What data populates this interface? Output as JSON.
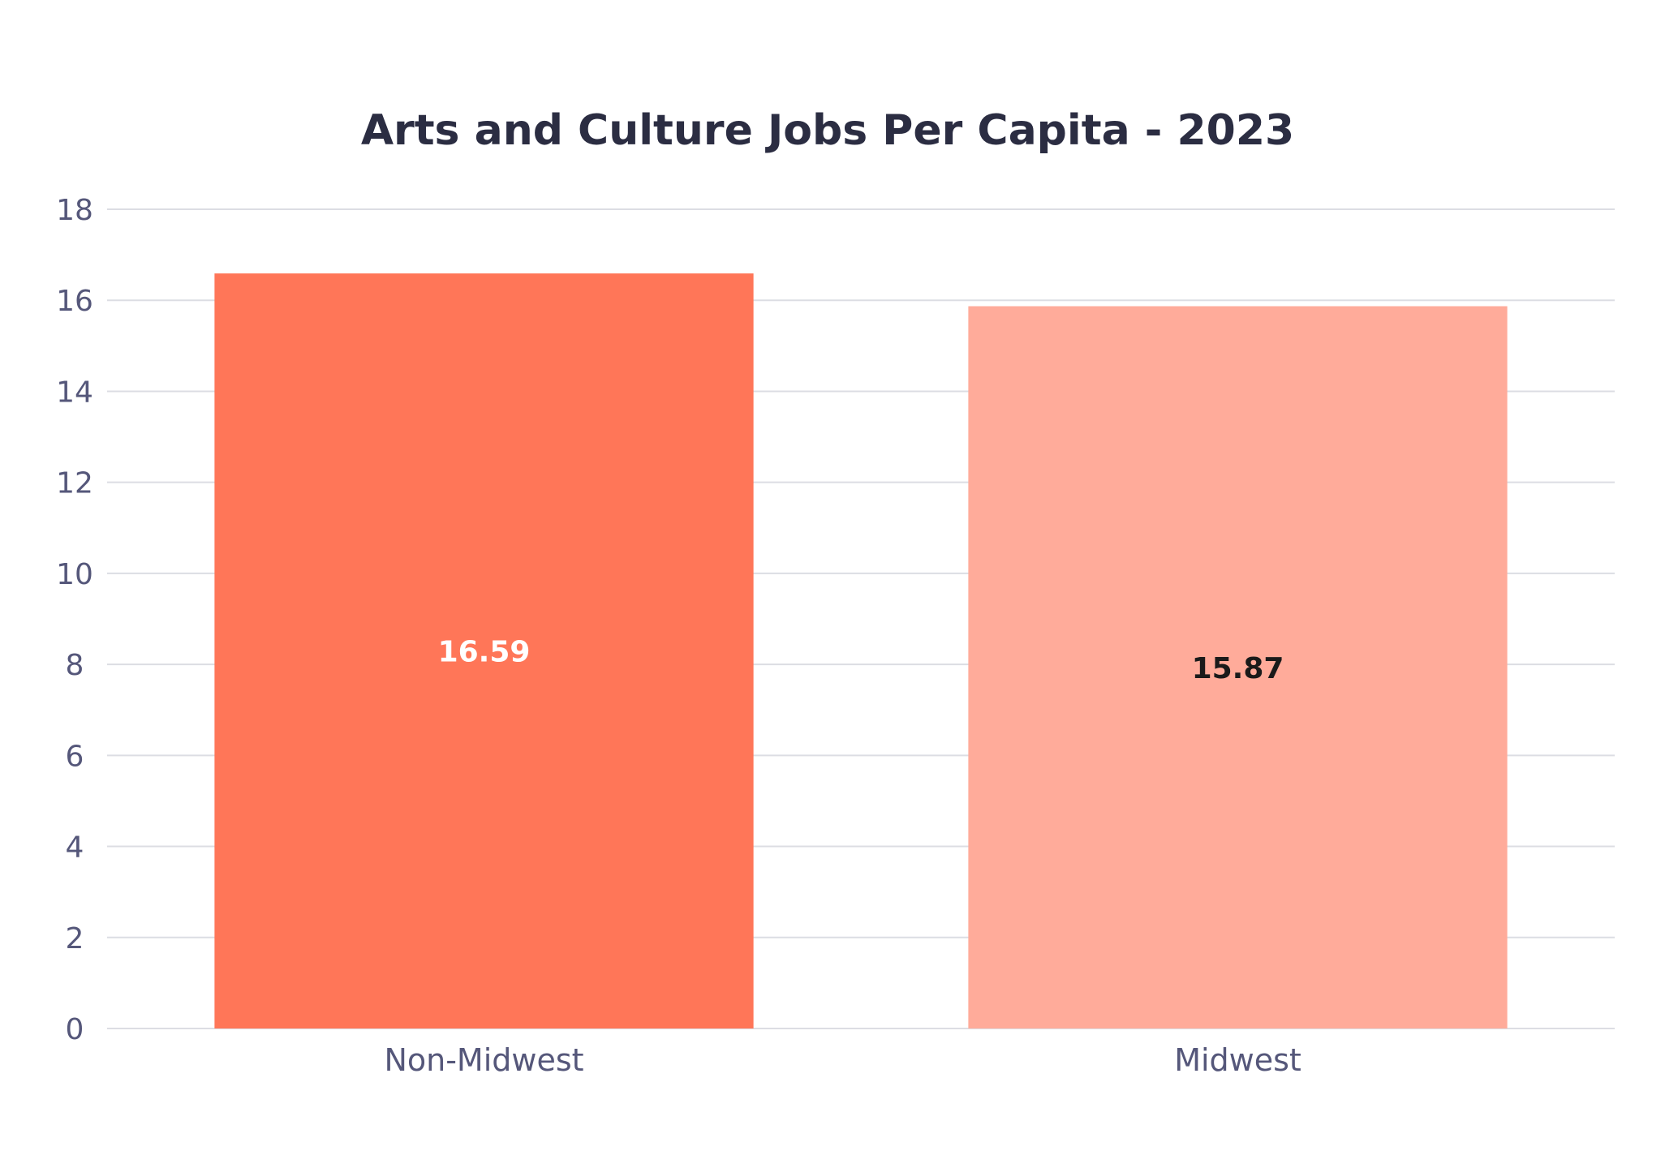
{
  "chart_data": {
    "type": "bar",
    "title": "Arts and Culture Jobs Per Capita - 2023",
    "categories": [
      "Non-Midwest",
      "Midwest"
    ],
    "values": [
      16.59,
      15.87
    ],
    "data_labels": [
      "16.59",
      "15.87"
    ],
    "bar_colors": [
      "#ff7658",
      "#ffab9a"
    ],
    "data_label_colors": [
      "#ffffff",
      "#1a1a1a"
    ],
    "ylim": [
      0,
      18
    ],
    "yticks": [
      0,
      2,
      4,
      6,
      8,
      10,
      12,
      14,
      16,
      18
    ],
    "xlabel": "",
    "ylabel": "",
    "grid": true,
    "legend": "none"
  }
}
